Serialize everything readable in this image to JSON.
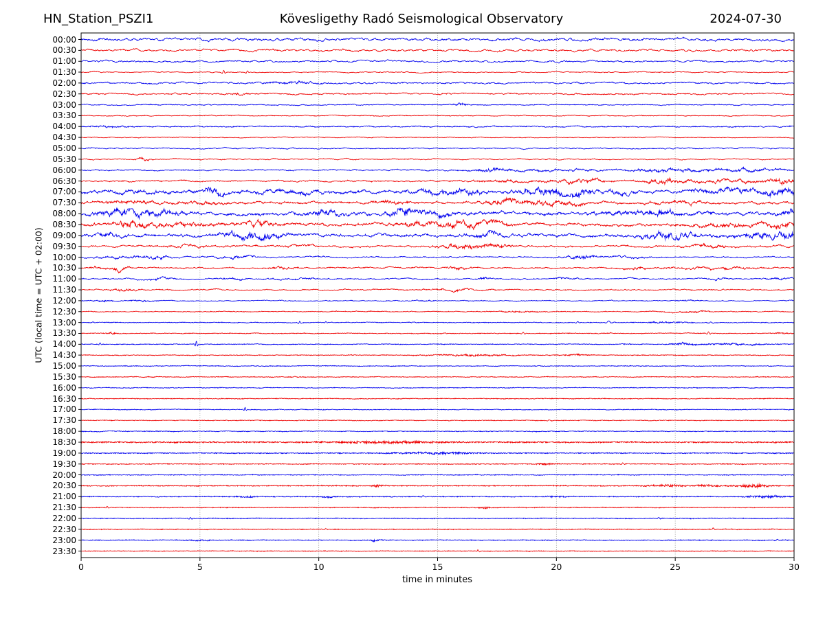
{
  "header": {
    "station": "HN_Station_PSZI1",
    "observatory": "Kövesligethy Radó Seismological Observatory",
    "date": "2024-07-30"
  },
  "chart_data": {
    "type": "line",
    "subtype": "helicorder-daily-seismogram",
    "title": "HN_Station_PSZI1 — Kövesligethy Radó Seismological Observatory — 2024-07-30",
    "xlabel": "time in minutes",
    "ylabel": "UTC (local time = UTC + 02:00)",
    "x_range": [
      0,
      30
    ],
    "x_ticks": [
      0,
      5,
      10,
      15,
      20,
      25,
      30
    ],
    "grid_minutes": [
      5,
      10,
      15,
      20,
      25
    ],
    "grid_style": "dotted-vertical",
    "palette": {
      "b": "#0000ee",
      "r": "#ee0000"
    },
    "row_format": [
      "time_label",
      "color_key",
      "base_amplitude_px",
      "high_freq_fraction",
      "events [t_min, amplitude_px, width_min]"
    ],
    "rows": [
      [
        "00:00",
        "b",
        1.35,
        0.15,
        []
      ],
      [
        "00:30",
        "r",
        1.05,
        0.2,
        [
          [
            28.2,
            1.3,
            0.09
          ]
        ]
      ],
      [
        "01:00",
        "b",
        0.95,
        0.15,
        []
      ],
      [
        "01:30",
        "r",
        0.55,
        0.3,
        [
          [
            6.0,
            2.6,
            0.06
          ],
          [
            7.0,
            2.0,
            0.06
          ]
        ]
      ],
      [
        "02:00",
        "b",
        0.9,
        0.3,
        [
          [
            8.8,
            1.1,
            0.8
          ]
        ]
      ],
      [
        "02:30",
        "r",
        0.85,
        0.3,
        [
          [
            6.6,
            0.9,
            0.3
          ]
        ]
      ],
      [
        "03:00",
        "b",
        0.6,
        0.4,
        [
          [
            16.0,
            2.0,
            0.18
          ]
        ]
      ],
      [
        "03:30",
        "r",
        0.55,
        0.4,
        []
      ],
      [
        "04:00",
        "b",
        0.7,
        0.45,
        [
          [
            1.3,
            0.7,
            0.5
          ],
          [
            16.5,
            0.9,
            0.12
          ]
        ]
      ],
      [
        "04:30",
        "r",
        0.5,
        0.4,
        []
      ],
      [
        "05:00",
        "b",
        0.7,
        0.3,
        []
      ],
      [
        "05:30",
        "r",
        0.65,
        0.3,
        [
          [
            2.6,
            1.1,
            0.2
          ]
        ]
      ],
      [
        "06:00",
        "b",
        0.75,
        0.35,
        [
          [
            17.2,
            1.4,
            0.5
          ],
          [
            19.5,
            1.0,
            1.5
          ],
          [
            24.8,
            1.7,
            1.2
          ],
          [
            28.2,
            1.4,
            1.0
          ]
        ]
      ],
      [
        "06:30",
        "r",
        0.85,
        0.35,
        [
          [
            18,
            0.9,
            1.0
          ],
          [
            21,
            1.8,
            0.8
          ],
          [
            24.5,
            2.2,
            0.5
          ],
          [
            27,
            1.3,
            1.5
          ],
          [
            29.5,
            2.5,
            0.4
          ]
        ]
      ],
      [
        "07:00",
        "b",
        1.7,
        0.3,
        [
          [
            2,
            1,
            1
          ],
          [
            5.6,
            3.2,
            0.4
          ],
          [
            9,
            1.4,
            1
          ],
          [
            15,
            1.8,
            0.6
          ],
          [
            16.2,
            2.2,
            0.4
          ],
          [
            19.6,
            2.8,
            0.8
          ],
          [
            21,
            2.6,
            0.5
          ],
          [
            22.7,
            2.2,
            0.3
          ],
          [
            27.5,
            1.8,
            1.2
          ],
          [
            29.5,
            2.8,
            0.5
          ]
        ]
      ],
      [
        "07:30",
        "r",
        1.35,
        0.3,
        [
          [
            2,
            1.4,
            0.7
          ],
          [
            5,
            0.9,
            0.8
          ],
          [
            13,
            0.9,
            0.6
          ],
          [
            17.8,
            2.8,
            0.5
          ],
          [
            19.2,
            2.3,
            0.5
          ],
          [
            20.6,
            1.8,
            0.4
          ],
          [
            25,
            0.9,
            0.8
          ]
        ]
      ],
      [
        "08:00",
        "b",
        1.8,
        0.3,
        [
          [
            1.2,
            1.8,
            0.5
          ],
          [
            2.2,
            3.2,
            0.5
          ],
          [
            3.5,
            1.8,
            0.5
          ],
          [
            10.3,
            2.2,
            0.5
          ],
          [
            13.6,
            3.2,
            0.4
          ],
          [
            14.6,
            1.8,
            0.8
          ],
          [
            23,
            1.4,
            1.0
          ],
          [
            24.5,
            2.2,
            0.4
          ],
          [
            29.8,
            2.8,
            0.3
          ]
        ]
      ],
      [
        "08:30",
        "r",
        1.6,
        0.3,
        [
          [
            2.3,
            3.2,
            0.5
          ],
          [
            4.5,
            1.8,
            0.7
          ],
          [
            7.5,
            2.2,
            0.4
          ],
          [
            14.2,
            2.2,
            0.6
          ],
          [
            15.8,
            2.5,
            0.6
          ],
          [
            17.2,
            1.8,
            0.5
          ],
          [
            27,
            1.4,
            0.8
          ],
          [
            29.5,
            2.2,
            0.5
          ]
        ]
      ],
      [
        "09:00",
        "b",
        1.6,
        0.3,
        [
          [
            1,
            1.4,
            0.5
          ],
          [
            6.8,
            3.2,
            0.6
          ],
          [
            7.9,
            2.2,
            0.5
          ],
          [
            17,
            2.8,
            0.4
          ],
          [
            24.3,
            2.8,
            0.6
          ],
          [
            25.2,
            1.8,
            0.5
          ],
          [
            28.6,
            2.5,
            0.8
          ],
          [
            29.8,
            2.2,
            0.3
          ]
        ]
      ],
      [
        "09:30",
        "r",
        1.05,
        0.3,
        [
          [
            4.5,
            0.9,
            0.6
          ],
          [
            9,
            0.7,
            0.5
          ],
          [
            16,
            2.2,
            0.6
          ],
          [
            17.2,
            1.8,
            0.6
          ],
          [
            26.5,
            1.4,
            0.6
          ]
        ]
      ],
      [
        "10:00",
        "b",
        0.85,
        0.3,
        [
          [
            2,
            1.1,
            0.8
          ],
          [
            3.3,
            1.4,
            0.3
          ],
          [
            6.5,
            1.1,
            0.6
          ],
          [
            21,
            2.2,
            0.4
          ],
          [
            23,
            0.9,
            0.5
          ]
        ]
      ],
      [
        "10:30",
        "r",
        0.85,
        0.3,
        [
          [
            0.6,
            1.4,
            0.2
          ],
          [
            1.6,
            2.2,
            0.25
          ],
          [
            8.5,
            0.9,
            0.4
          ],
          [
            15.8,
            1.4,
            0.3
          ],
          [
            23.2,
            1.2,
            0.4
          ],
          [
            26.5,
            0.9,
            1.5
          ]
        ]
      ],
      [
        "11:00",
        "b",
        0.75,
        0.3,
        [
          [
            3.3,
            1.1,
            0.4
          ],
          [
            6.4,
            1.4,
            0.3
          ],
          [
            9,
            0.7,
            0.6
          ],
          [
            17,
            1.3,
            0.2
          ],
          [
            20.4,
            0.9,
            0.3
          ],
          [
            26.8,
            0.8,
            0.3
          ],
          [
            29.3,
            0.8,
            0.3
          ]
        ]
      ],
      [
        "11:30",
        "r",
        0.75,
        0.35,
        [
          [
            1.8,
            1.6,
            0.3
          ],
          [
            15.8,
            0.9,
            0.6
          ],
          [
            20,
            0.7,
            0.12
          ],
          [
            27,
            1.2,
            0.1
          ]
        ]
      ],
      [
        "12:00",
        "b",
        0.6,
        0.4,
        [
          [
            1,
            0.9,
            0.3
          ],
          [
            2.5,
            0.7,
            0.3
          ],
          [
            14.5,
            0.5,
            0.3
          ],
          [
            25.5,
            0.5,
            0.3
          ]
        ]
      ],
      [
        "12:30",
        "r",
        0.55,
        0.5,
        [
          [
            18.5,
            0.6,
            0.6
          ],
          [
            25.5,
            0.7,
            0.6
          ]
        ]
      ],
      [
        "13:00",
        "b",
        0.5,
        0.6,
        [
          [
            0.5,
            0.7,
            0.1
          ],
          [
            9.2,
            1.8,
            0.06
          ],
          [
            10.3,
            1.1,
            0.06
          ],
          [
            14,
            0.7,
            0.1
          ],
          [
            20.9,
            1.2,
            0.07
          ],
          [
            22.2,
            1.8,
            0.12
          ],
          [
            24.3,
            0.7,
            0.3
          ],
          [
            25.2,
            0.9,
            0.3
          ],
          [
            26.5,
            1.3,
            0.09
          ]
        ]
      ],
      [
        "13:30",
        "r",
        0.5,
        0.6,
        [
          [
            1.3,
            0.9,
            0.2
          ],
          [
            15.3,
            0.7,
            0.1
          ],
          [
            18.6,
            1.8,
            0.07
          ],
          [
            22.3,
            0.7,
            0.08
          ],
          [
            26.4,
            1.9,
            0.07
          ],
          [
            29.5,
            0.7,
            0.2
          ]
        ]
      ],
      [
        "14:00",
        "b",
        0.5,
        0.6,
        [
          [
            0.8,
            1.6,
            0.06
          ],
          [
            4.85,
            4.5,
            0.05
          ],
          [
            22.9,
            0.7,
            0.15
          ],
          [
            25.4,
            1.3,
            0.3
          ],
          [
            27.7,
            0.9,
            1.0
          ]
        ]
      ],
      [
        "14:30",
        "r",
        0.5,
        0.6,
        [
          [
            16.5,
            0.9,
            1.2
          ],
          [
            20.8,
            0.7,
            0.4
          ]
        ]
      ],
      [
        "15:00",
        "b",
        0.5,
        0.6,
        []
      ],
      [
        "15:30",
        "r",
        0.5,
        0.6,
        [
          [
            9,
            0.7,
            0.12
          ]
        ]
      ],
      [
        "16:00",
        "b",
        0.5,
        0.6,
        []
      ],
      [
        "16:30",
        "r",
        0.5,
        0.65,
        []
      ],
      [
        "17:00",
        "b",
        0.5,
        0.6,
        [
          [
            6.9,
            2.6,
            0.05
          ]
        ]
      ],
      [
        "17:30",
        "r",
        0.5,
        0.65,
        [
          [
            19.7,
            0.9,
            0.1
          ]
        ]
      ],
      [
        "18:00",
        "b",
        0.55,
        0.65,
        []
      ],
      [
        "18:30",
        "r",
        0.8,
        0.85,
        [
          [
            13,
            0.9,
            1.5
          ]
        ]
      ],
      [
        "19:00",
        "b",
        0.65,
        0.8,
        [
          [
            15,
            0.9,
            1.2
          ]
        ]
      ],
      [
        "19:30",
        "r",
        0.6,
        0.75,
        [
          [
            19.5,
            0.6,
            0.3
          ],
          [
            22.8,
            1.4,
            0.07
          ]
        ]
      ],
      [
        "20:00",
        "b",
        0.6,
        0.7,
        []
      ],
      [
        "20:30",
        "r",
        0.65,
        0.8,
        [
          [
            12.5,
            0.8,
            0.2
          ],
          [
            24.7,
            0.9,
            0.6
          ],
          [
            26.3,
            0.7,
            0.3
          ],
          [
            28.3,
            1.4,
            0.5
          ]
        ]
      ],
      [
        "21:00",
        "b",
        0.6,
        0.75,
        [
          [
            7,
            0.6,
            0.3
          ],
          [
            10.5,
            0.7,
            0.2
          ],
          [
            14.4,
            1.1,
            0.09
          ],
          [
            20,
            0.6,
            0.3
          ],
          [
            28.8,
            1.2,
            0.5
          ]
        ]
      ],
      [
        "21:30",
        "r",
        0.55,
        0.7,
        [
          [
            1.1,
            1.6,
            0.06
          ],
          [
            17,
            1.0,
            0.15
          ]
        ]
      ],
      [
        "22:00",
        "b",
        0.55,
        0.7,
        [
          [
            4.6,
            1.6,
            0.06
          ],
          [
            24.3,
            1.4,
            0.07
          ]
        ]
      ],
      [
        "22:30",
        "r",
        0.55,
        0.7,
        [
          [
            10.3,
            0.9,
            0.09
          ],
          [
            26.6,
            1.6,
            0.07
          ]
        ]
      ],
      [
        "23:00",
        "b",
        0.55,
        0.7,
        [
          [
            5,
            0.6,
            0.3
          ],
          [
            12.3,
            0.8,
            0.2
          ],
          [
            29.3,
            0.9,
            0.1
          ]
        ]
      ],
      [
        "23:30",
        "r",
        0.5,
        0.7,
        [
          [
            16.7,
            1.6,
            0.06
          ]
        ]
      ]
    ]
  }
}
